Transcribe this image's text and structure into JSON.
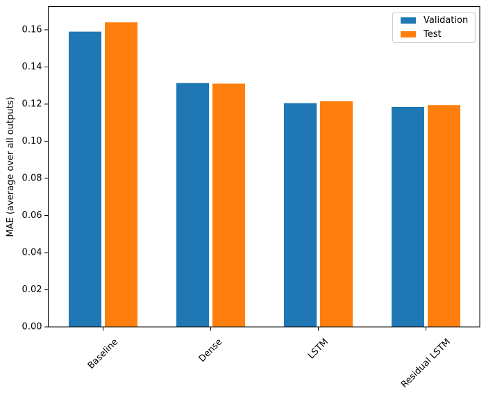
{
  "chart_data": {
    "type": "bar",
    "title": "",
    "categories": [
      "Baseline",
      "Dense",
      "LSTM",
      "Residual LSTM"
    ],
    "series": [
      {
        "name": "Validation",
        "color": "#1f77b4",
        "values": [
          0.159,
          0.1313,
          0.1205,
          0.1185
        ]
      },
      {
        "name": "Test",
        "color": "#ff7f0e",
        "values": [
          0.164,
          0.131,
          0.1215,
          0.1195
        ]
      }
    ],
    "xlabel": "",
    "ylabel": "MAE (average over all outputs)",
    "ylim": [
      0,
      0.1725
    ],
    "yticks": [
      0.0,
      0.02,
      0.04,
      0.06,
      0.08,
      0.1,
      0.12,
      0.14,
      0.16
    ],
    "ytick_labels": [
      "0.00",
      "0.02",
      "0.04",
      "0.06",
      "0.08",
      "0.10",
      "0.12",
      "0.14",
      "0.16"
    ],
    "x_tick_rotation_deg": 45,
    "grid": false,
    "legend_position": "upper right"
  },
  "colors": {
    "axis": "#000000",
    "text": "#000000",
    "legend_border": "#cccccc",
    "background": "#ffffff"
  }
}
